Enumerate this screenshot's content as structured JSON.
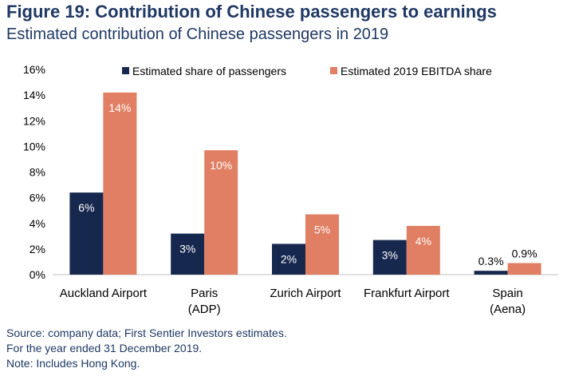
{
  "figure": {
    "title": "Figure 19: Contribution of Chinese passengers to earnings",
    "subtitle": "Estimated contribution of Chinese passengers in 2019"
  },
  "colors": {
    "passengers": "#17284f",
    "ebitda": "#e07f63",
    "title": "#1f3864",
    "axis": "#bfbfbf",
    "text": "#000000"
  },
  "chart_data": {
    "type": "bar",
    "categories": [
      [
        "Auckland Airport"
      ],
      [
        "Paris",
        "(ADP)"
      ],
      [
        "Zurich Airport"
      ],
      [
        "Frankfurt Airport"
      ],
      [
        "Spain",
        "(Aena)"
      ]
    ],
    "series": [
      {
        "name": "Estimated share of passengers",
        "values": [
          6.4,
          3.2,
          2.4,
          2.7,
          0.3
        ],
        "labels": [
          "6%",
          "3%",
          "2%",
          "3%",
          "0.3%"
        ]
      },
      {
        "name": "Estimated 2019 EBITDA share",
        "values": [
          14.2,
          9.7,
          4.7,
          3.8,
          0.9
        ],
        "labels": [
          "14%",
          "10%",
          "5%",
          "4%",
          "0.9%"
        ]
      }
    ],
    "yticks": [
      "0%",
      "2%",
      "4%",
      "6%",
      "8%",
      "10%",
      "12%",
      "14%",
      "16%"
    ],
    "ylim": [
      0,
      16
    ],
    "legend_position": "top"
  },
  "footer": {
    "source": "Source: company data; First Sentier Investors estimates.",
    "period": "For the year ended 31 December 2019.",
    "note": "Note: Includes Hong Kong."
  }
}
